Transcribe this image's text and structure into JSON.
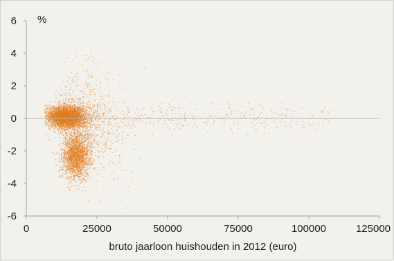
{
  "chart_data": {
    "type": "scatter",
    "title": "",
    "xlabel": "bruto jaarloon huishouden in 2012 (euro)",
    "ylabel": "%",
    "xlim": [
      0,
      125000
    ],
    "ylim": [
      -6,
      6
    ],
    "x_ticks": [
      "0",
      "25000",
      "50000",
      "75000",
      "100000",
      "125000"
    ],
    "y_ticks": [
      "6",
      "4",
      "2",
      "0",
      "-2",
      "-4",
      "-6"
    ],
    "grid": false,
    "legend": "none",
    "point_color": "#e07b1f",
    "point_count": 8000,
    "clusters": [
      {
        "name": "",
        "x_center": 14000,
        "y_center": 0.1,
        "x_spread": 3500,
        "y_spread": 0.35
      },
      {
        "name": "",
        "x_center": 17500,
        "y_center": -2.3,
        "x_spread": 2500,
        "y_spread": 0.7
      }
    ]
  }
}
